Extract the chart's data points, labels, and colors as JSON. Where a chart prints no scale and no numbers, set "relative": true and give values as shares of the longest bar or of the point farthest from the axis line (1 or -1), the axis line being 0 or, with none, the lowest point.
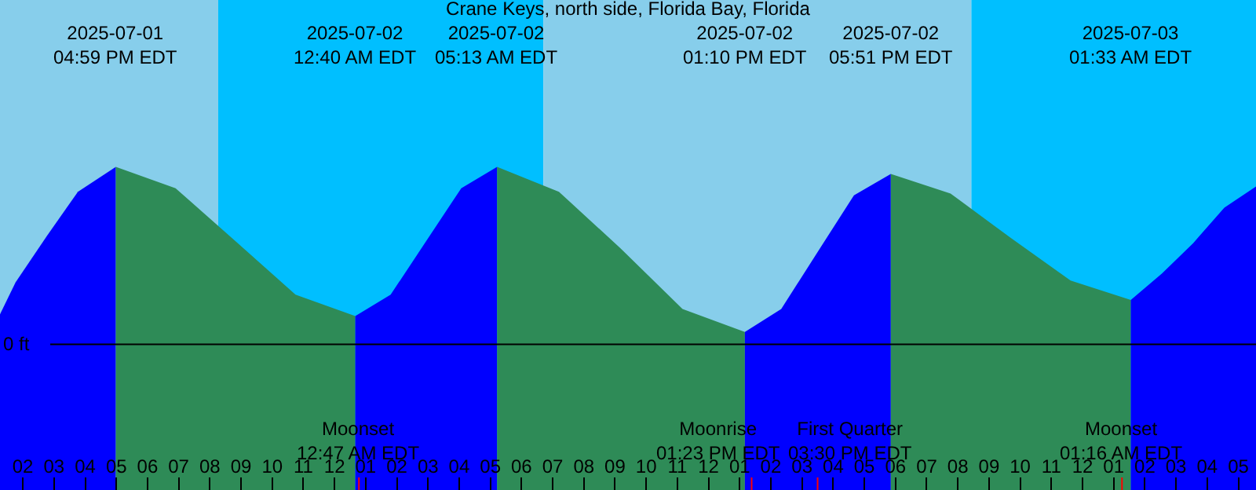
{
  "chart_data": {
    "type": "area",
    "title": "Crane Keys, north side, Florida Bay, Florida",
    "relative": true,
    "tick_labels": "x",
    "xlim": [
      "2025-07-01T13:16",
      "2025-07-03T05:34"
    ],
    "xticks": [
      {
        "value": "2025-07-01T14:00",
        "label": "02"
      },
      {
        "value": "2025-07-01T15:00",
        "label": "03"
      },
      {
        "value": "2025-07-01T16:00",
        "label": "04"
      },
      {
        "value": "2025-07-01T17:00",
        "label": "05"
      },
      {
        "value": "2025-07-01T18:00",
        "label": "06"
      },
      {
        "value": "2025-07-01T19:00",
        "label": "07"
      },
      {
        "value": "2025-07-01T20:00",
        "label": "08"
      },
      {
        "value": "2025-07-01T21:00",
        "label": "09"
      },
      {
        "value": "2025-07-01T22:00",
        "label": "10"
      },
      {
        "value": "2025-07-01T23:00",
        "label": "11"
      },
      {
        "value": "2025-07-02T00:00",
        "label": "12"
      },
      {
        "value": "2025-07-02T01:00",
        "label": "01"
      },
      {
        "value": "2025-07-02T02:00",
        "label": "02"
      },
      {
        "value": "2025-07-02T03:00",
        "label": "03"
      },
      {
        "value": "2025-07-02T04:00",
        "label": "04"
      },
      {
        "value": "2025-07-02T05:00",
        "label": "05"
      },
      {
        "value": "2025-07-02T06:00",
        "label": "06"
      },
      {
        "value": "2025-07-02T07:00",
        "label": "07"
      },
      {
        "value": "2025-07-02T08:00",
        "label": "08"
      },
      {
        "value": "2025-07-02T09:00",
        "label": "09"
      },
      {
        "value": "2025-07-02T10:00",
        "label": "10"
      },
      {
        "value": "2025-07-02T11:00",
        "label": "11"
      },
      {
        "value": "2025-07-02T12:00",
        "label": "12"
      },
      {
        "value": "2025-07-02T13:00",
        "label": "01"
      },
      {
        "value": "2025-07-02T14:00",
        "label": "02"
      },
      {
        "value": "2025-07-02T15:00",
        "label": "03"
      },
      {
        "value": "2025-07-02T16:00",
        "label": "04"
      },
      {
        "value": "2025-07-02T17:00",
        "label": "05"
      },
      {
        "value": "2025-07-02T18:00",
        "label": "06"
      },
      {
        "value": "2025-07-02T19:00",
        "label": "07"
      },
      {
        "value": "2025-07-02T20:00",
        "label": "08"
      },
      {
        "value": "2025-07-02T21:00",
        "label": "09"
      },
      {
        "value": "2025-07-02T22:00",
        "label": "10"
      },
      {
        "value": "2025-07-02T23:00",
        "label": "11"
      },
      {
        "value": "2025-07-03T00:00",
        "label": "12"
      },
      {
        "value": "2025-07-03T01:00",
        "label": "01"
      },
      {
        "value": "2025-07-03T02:00",
        "label": "02"
      },
      {
        "value": "2025-07-03T03:00",
        "label": "03"
      },
      {
        "value": "2025-07-03T04:00",
        "label": "04"
      },
      {
        "value": "2025-07-03T05:00",
        "label": "05"
      }
    ],
    "series": [
      {
        "color": "#0000ff",
        "x": [
          "2025-07-01T13:16",
          "2025-07-01T13:46",
          "2025-07-01T14:46",
          "2025-07-01T15:46",
          "2025-07-01T16:59"
        ],
        "values": [
          0.17,
          0.35,
          0.61,
          0.86,
          1
        ]
      },
      {
        "color": "#2e8b57",
        "x": [
          "2025-07-01T16:59",
          "2025-07-01T18:54",
          "2025-07-01T20:50",
          "2025-07-01T22:45",
          "2025-07-02T00:40"
        ],
        "values": [
          1,
          0.88,
          0.58,
          0.28,
          0.16
        ]
      },
      {
        "color": "#0000ff",
        "x": [
          "2025-07-02T00:40",
          "2025-07-02T01:48",
          "2025-07-02T02:56",
          "2025-07-02T04:04",
          "2025-07-02T05:13"
        ],
        "values": [
          0.16,
          0.28,
          0.58,
          0.88,
          1
        ]
      },
      {
        "color": "#2e8b57",
        "x": [
          "2025-07-02T05:13",
          "2025-07-02T07:12",
          "2025-07-02T09:11",
          "2025-07-02T11:10",
          "2025-07-02T13:10"
        ],
        "values": [
          1,
          0.86,
          0.54,
          0.2,
          0.07
        ]
      },
      {
        "color": "#0000ff",
        "x": [
          "2025-07-02T13:10",
          "2025-07-02T14:20",
          "2025-07-02T15:30",
          "2025-07-02T16:40",
          "2025-07-02T17:51"
        ],
        "values": [
          0.07,
          0.2,
          0.52,
          0.84,
          0.96
        ]
      },
      {
        "color": "#2e8b57",
        "x": [
          "2025-07-02T17:51",
          "2025-07-02T19:46",
          "2025-07-02T21:42",
          "2025-07-02T23:37",
          "2025-07-03T01:33"
        ],
        "values": [
          0.96,
          0.85,
          0.6,
          0.36,
          0.25
        ]
      },
      {
        "color": "#0000ff",
        "x": [
          "2025-07-03T01:33",
          "2025-07-03T02:33",
          "2025-07-03T03:33",
          "2025-07-03T04:33",
          "2025-07-03T05:34"
        ],
        "values": [
          0.25,
          0.4,
          0.57,
          0.77,
          0.89
        ]
      }
    ],
    "bands": [
      {
        "axis": "x",
        "from": "2025-07-01T13:16",
        "to": "2025-07-01T20:16",
        "color": "#87ceeb"
      },
      {
        "axis": "x",
        "from": "2025-07-01T20:16",
        "to": "2025-07-02T06:42",
        "color": "#00bfff"
      },
      {
        "axis": "x",
        "from": "2025-07-02T06:42",
        "to": "2025-07-02T20:26",
        "color": "#87ceeb"
      },
      {
        "axis": "x",
        "from": "2025-07-02T20:26",
        "to": "2025-07-03T05:34",
        "color": "#00bfff"
      }
    ],
    "ref_lines": [
      {
        "axis": "y",
        "value": 0,
        "label": "0 ft",
        "color": "#000000"
      },
      {
        "axis": "x",
        "value": "2025-07-02T00:47",
        "label": "Moonset\n12:47 AM EDT",
        "color": "#ff0000"
      },
      {
        "axis": "x",
        "value": "2025-07-02T13:23",
        "label": "Moonrise\n01:23 PM EDT",
        "color": "#ff0000"
      },
      {
        "axis": "x",
        "value": "2025-07-02T15:30",
        "label": "First Quarter\n03:30 PM EDT",
        "color": "#ff0000"
      },
      {
        "axis": "x",
        "value": "2025-07-03T01:16",
        "label": "Moonset\n01:16 AM EDT",
        "color": "#ff0000"
      }
    ],
    "annotations": [
      "2025-07-01\n04:59 PM EDT",
      "2025-07-02\n12:40 AM EDT",
      "2025-07-02\n05:13 AM EDT",
      "2025-07-02\n01:10 PM EDT",
      "2025-07-02\n05:51 PM EDT",
      "2025-07-03\n01:33 AM EDT"
    ]
  }
}
